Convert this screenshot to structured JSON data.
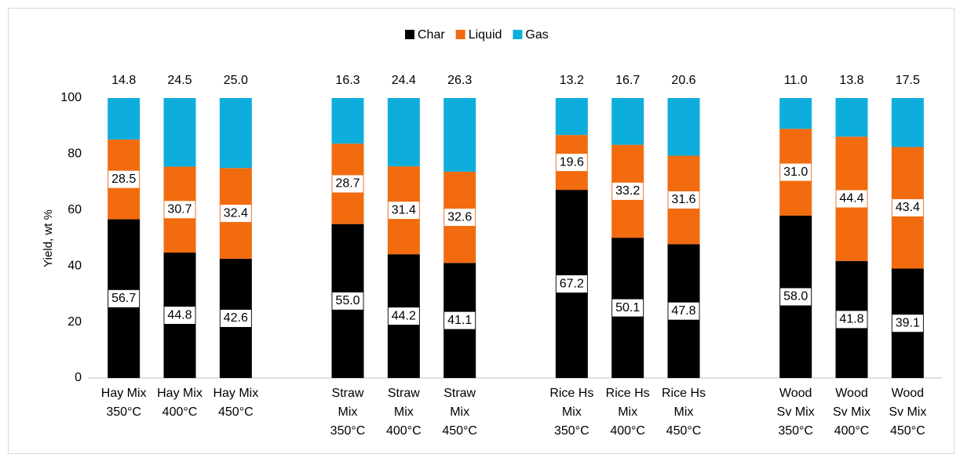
{
  "chart_data": {
    "type": "stacked_bar",
    "y_label": "Yield, wt %",
    "categories": [
      "Hay Mix\n350°C",
      "Hay Mix\n400°C",
      "Hay Mix\n450°C",
      null,
      "Straw\nMix\n350°C",
      "Straw\nMix\n400°C",
      "Straw\nMix\n450°C",
      null,
      "Rice Hs\nMix\n350°C",
      "Rice Hs\nMix\n400°C",
      "Rice Hs\nMix\n450°C",
      null,
      "Wood\nSv Mix\n350°C",
      "Wood\nSv Mix\n400°C",
      "Wood\nSv Mix\n450°C"
    ],
    "series": [
      {
        "name": "Char",
        "color": "#000000",
        "values": [
          56.7,
          44.8,
          42.6,
          null,
          55.0,
          44.2,
          41.1,
          null,
          67.2,
          50.1,
          47.8,
          null,
          58.0,
          41.8,
          39.1
        ],
        "value_labels": [
          "56.7",
          "44.8",
          "42.6",
          null,
          "55.0",
          "44.2",
          "41.1",
          null,
          "67.2",
          "50.1",
          "47.8",
          null,
          "58.0",
          "41.8",
          "39.1"
        ]
      },
      {
        "name": "Liquid",
        "color": "#f26b0f",
        "values": [
          28.5,
          30.7,
          32.4,
          null,
          28.7,
          31.4,
          32.6,
          null,
          19.6,
          33.2,
          31.6,
          null,
          31.0,
          44.4,
          43.4
        ],
        "value_labels": [
          "28.5",
          "30.7",
          "32.4",
          null,
          "28.7",
          "31.4",
          "32.6",
          null,
          "19.6",
          "33.2",
          "31.6",
          null,
          "31.0",
          "44.4",
          "43.4"
        ]
      },
      {
        "name": "Gas",
        "color": "#0eaedc",
        "values": [
          14.8,
          24.5,
          25.0,
          null,
          16.3,
          24.4,
          26.3,
          null,
          13.2,
          16.7,
          20.6,
          null,
          11.0,
          13.8,
          17.5
        ],
        "value_labels": [
          "14.8",
          "24.5",
          "25.0",
          null,
          "16.3",
          "24.4",
          "26.3",
          null,
          "13.2",
          "16.7",
          "20.6",
          null,
          "11.0",
          "13.8",
          "17.5"
        ]
      }
    ],
    "ylim": [
      0,
      100
    ],
    "yticks": [
      0,
      20,
      40,
      60,
      80,
      100
    ],
    "grid": false,
    "legend": "top"
  }
}
